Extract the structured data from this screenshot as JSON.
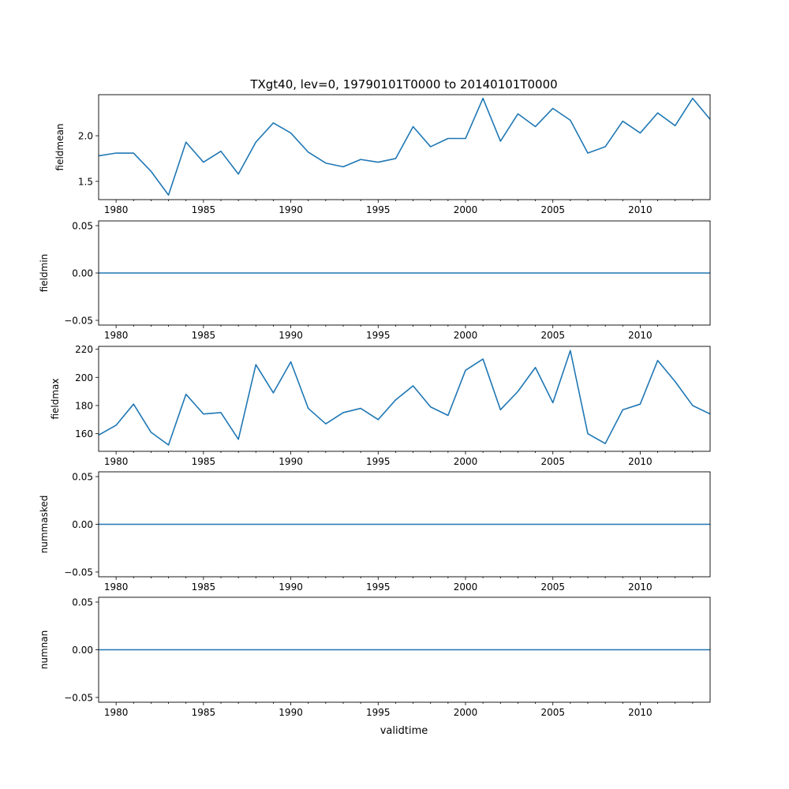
{
  "figure": {
    "title": "TXgt40, lev=0, 19790101T0000 to 20140101T0000",
    "xlabel": "validtime"
  },
  "colors": {
    "line": "#1f77b4",
    "axes": "#000000",
    "background": "#ffffff"
  },
  "chart_data": [
    {
      "type": "line",
      "ylabel": "fieldmean",
      "xlim": [
        1979,
        2014
      ],
      "ylim": [
        1.3,
        2.45
      ],
      "yticks": [
        1.5,
        2.0,
        2.5
      ],
      "ytick_labels": [
        "1.5",
        "2.0"
      ],
      "xticks": [
        1980,
        1985,
        1990,
        1995,
        2000,
        2005,
        2010
      ],
      "xtick_labels": [
        "1980",
        "1985",
        "1990",
        "1995",
        "2000",
        "2005",
        "2010"
      ],
      "x": [
        1979,
        1980,
        1981,
        1982,
        1983,
        1984,
        1985,
        1986,
        1987,
        1988,
        1989,
        1990,
        1991,
        1992,
        1993,
        1994,
        1995,
        1996,
        1997,
        1998,
        1999,
        2000,
        2001,
        2002,
        2003,
        2004,
        2005,
        2006,
        2007,
        2008,
        2009,
        2010,
        2011,
        2012,
        2013,
        2014
      ],
      "values": [
        1.78,
        1.81,
        1.81,
        1.61,
        1.35,
        1.93,
        1.71,
        1.83,
        1.58,
        1.93,
        2.14,
        2.03,
        1.82,
        1.7,
        1.66,
        1.74,
        1.71,
        1.75,
        2.1,
        1.88,
        1.97,
        1.97,
        2.41,
        1.94,
        2.24,
        2.1,
        2.3,
        2.17,
        1.81,
        1.88,
        2.16,
        2.03,
        2.25,
        2.11,
        2.41,
        2.18
      ]
    },
    {
      "type": "line",
      "ylabel": "fieldmin",
      "xlim": [
        1979,
        2014
      ],
      "ylim": [
        -0.055,
        0.055
      ],
      "yticks": [
        -0.05,
        0.0,
        0.05
      ],
      "ytick_labels": [
        "−0.05",
        "0.00",
        "0.05"
      ],
      "xticks": [
        1980,
        1985,
        1990,
        1995,
        2000,
        2005,
        2010
      ],
      "xtick_labels": [
        "1980",
        "1985",
        "1990",
        "1995",
        "2000",
        "2005",
        "2010"
      ],
      "x": [
        1979,
        1980,
        1981,
        1982,
        1983,
        1984,
        1985,
        1986,
        1987,
        1988,
        1989,
        1990,
        1991,
        1992,
        1993,
        1994,
        1995,
        1996,
        1997,
        1998,
        1999,
        2000,
        2001,
        2002,
        2003,
        2004,
        2005,
        2006,
        2007,
        2008,
        2009,
        2010,
        2011,
        2012,
        2013,
        2014
      ],
      "values": [
        0,
        0,
        0,
        0,
        0,
        0,
        0,
        0,
        0,
        0,
        0,
        0,
        0,
        0,
        0,
        0,
        0,
        0,
        0,
        0,
        0,
        0,
        0,
        0,
        0,
        0,
        0,
        0,
        0,
        0,
        0,
        0,
        0,
        0,
        0,
        0
      ]
    },
    {
      "type": "line",
      "ylabel": "fieldmax",
      "xlim": [
        1979,
        2014
      ],
      "ylim": [
        147.5,
        222
      ],
      "yticks": [
        160,
        180,
        200,
        220
      ],
      "ytick_labels": [
        "160",
        "180",
        "200",
        "220"
      ],
      "xticks": [
        1980,
        1985,
        1990,
        1995,
        2000,
        2005,
        2010
      ],
      "xtick_labels": [
        "1980",
        "1985",
        "1990",
        "1995",
        "2000",
        "2005",
        "2010"
      ],
      "x": [
        1979,
        1980,
        1981,
        1982,
        1983,
        1984,
        1985,
        1986,
        1987,
        1988,
        1989,
        1990,
        1991,
        1992,
        1993,
        1994,
        1995,
        1996,
        1997,
        1998,
        1999,
        2000,
        2001,
        2002,
        2003,
        2004,
        2005,
        2006,
        2007,
        2008,
        2009,
        2010,
        2011,
        2012,
        2013,
        2014
      ],
      "values": [
        159,
        166,
        181,
        161,
        152,
        188,
        174,
        175,
        156,
        209,
        189,
        211,
        178,
        167,
        175,
        178,
        170,
        184,
        194,
        179,
        173,
        205,
        213,
        177,
        190,
        207,
        182,
        219,
        160,
        153,
        177,
        181,
        212,
        197,
        180,
        174
      ]
    },
    {
      "type": "line",
      "ylabel": "nummasked",
      "xlim": [
        1979,
        2014
      ],
      "ylim": [
        -0.055,
        0.055
      ],
      "yticks": [
        -0.05,
        0.0,
        0.05
      ],
      "ytick_labels": [
        "−0.05",
        "0.00",
        "0.05"
      ],
      "xticks": [
        1980,
        1985,
        1990,
        1995,
        2000,
        2005,
        2010
      ],
      "xtick_labels": [
        "1980",
        "1985",
        "1990",
        "1995",
        "2000",
        "2005",
        "2010"
      ],
      "x": [
        1979,
        1980,
        1981,
        1982,
        1983,
        1984,
        1985,
        1986,
        1987,
        1988,
        1989,
        1990,
        1991,
        1992,
        1993,
        1994,
        1995,
        1996,
        1997,
        1998,
        1999,
        2000,
        2001,
        2002,
        2003,
        2004,
        2005,
        2006,
        2007,
        2008,
        2009,
        2010,
        2011,
        2012,
        2013,
        2014
      ],
      "values": [
        0,
        0,
        0,
        0,
        0,
        0,
        0,
        0,
        0,
        0,
        0,
        0,
        0,
        0,
        0,
        0,
        0,
        0,
        0,
        0,
        0,
        0,
        0,
        0,
        0,
        0,
        0,
        0,
        0,
        0,
        0,
        0,
        0,
        0,
        0,
        0
      ]
    },
    {
      "type": "line",
      "ylabel": "numnan",
      "xlim": [
        1979,
        2014
      ],
      "ylim": [
        -0.055,
        0.055
      ],
      "yticks": [
        -0.05,
        0.0,
        0.05
      ],
      "ytick_labels": [
        "−0.05",
        "0.00",
        "0.05"
      ],
      "xticks": [
        1980,
        1985,
        1990,
        1995,
        2000,
        2005,
        2010
      ],
      "xtick_labels": [
        "1980",
        "1985",
        "1990",
        "1995",
        "2000",
        "2005",
        "2010"
      ],
      "x": [
        1979,
        1980,
        1981,
        1982,
        1983,
        1984,
        1985,
        1986,
        1987,
        1988,
        1989,
        1990,
        1991,
        1992,
        1993,
        1994,
        1995,
        1996,
        1997,
        1998,
        1999,
        2000,
        2001,
        2002,
        2003,
        2004,
        2005,
        2006,
        2007,
        2008,
        2009,
        2010,
        2011,
        2012,
        2013,
        2014
      ],
      "values": [
        0,
        0,
        0,
        0,
        0,
        0,
        0,
        0,
        0,
        0,
        0,
        0,
        0,
        0,
        0,
        0,
        0,
        0,
        0,
        0,
        0,
        0,
        0,
        0,
        0,
        0,
        0,
        0,
        0,
        0,
        0,
        0,
        0,
        0,
        0,
        0
      ]
    }
  ]
}
